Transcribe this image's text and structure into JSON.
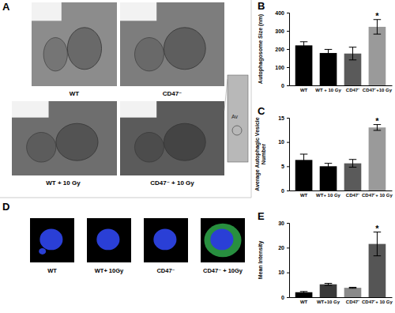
{
  "chart_data": [
    {
      "type": "bar",
      "title": "B",
      "ylabel": "Autophagosome Size (nm)",
      "categories": [
        "WT",
        "WT + 10 Gy",
        "CD47⁻",
        "CD47⁻+10 Gy"
      ],
      "values": [
        220,
        178,
        175,
        322
      ],
      "errors": [
        20,
        20,
        35,
        40
      ],
      "colors": [
        "#000000",
        "#000000",
        "#5a5a5a",
        "#9a9a9a"
      ],
      "ylim": [
        0,
        400
      ],
      "yticks": [
        0,
        100,
        200,
        300,
        400
      ],
      "annotations": [
        {
          "text": "*",
          "category": "CD47⁻+10 Gy"
        }
      ]
    },
    {
      "type": "bar",
      "title": "C",
      "ylabel": "Average Autophagic Vesicle Number",
      "categories": [
        "WT",
        "WT+ 10 Gy",
        "CD47⁻",
        "CD47⁻+ 10 Gy"
      ],
      "values": [
        6.3,
        5,
        5.6,
        13
      ],
      "errors": [
        1.2,
        0.6,
        0.8,
        0.6
      ],
      "colors": [
        "#000000",
        "#000000",
        "#5a5a5a",
        "#9a9a9a"
      ],
      "ylim": [
        0,
        15
      ],
      "yticks": [
        0,
        5,
        10,
        15
      ],
      "annotations": [
        {
          "text": "*",
          "category": "CD47⁻+ 10 Gy"
        }
      ]
    },
    {
      "type": "bar",
      "title": "E",
      "ylabel": "Mean Intensity",
      "categories": [
        "WT",
        "WT+10 Gy",
        "CD47⁻",
        "CD47⁻+ 10 Gy"
      ],
      "values": [
        2,
        5.2,
        3.8,
        21.5
      ],
      "errors": [
        0.3,
        0.4,
        0.2,
        4.8
      ],
      "colors": [
        "#000000",
        "#3a3a3a",
        "#8a8a8a",
        "#555555"
      ],
      "ylim": [
        0,
        30
      ],
      "yticks": [
        0,
        10,
        20,
        30
      ],
      "annotations": [
        {
          "text": "*",
          "category": "CD47⁻+ 10 Gy"
        }
      ]
    }
  ],
  "figure": {
    "panels": [
      {
        "label": "A",
        "images": [
          {
            "label": "WT"
          },
          {
            "label": "CD47⁻"
          },
          {
            "label": "WT + 10 Gy"
          },
          {
            "label": "CD47⁻ + 10 Gy"
          }
        ],
        "inset_label": "Av"
      },
      {
        "label": "D",
        "images": [
          {
            "label": "WT"
          },
          {
            "label": "WT+ 10Gy"
          },
          {
            "label": "CD47⁻"
          },
          {
            "label": "CD47⁻ + 10Gy"
          }
        ]
      }
    ]
  }
}
